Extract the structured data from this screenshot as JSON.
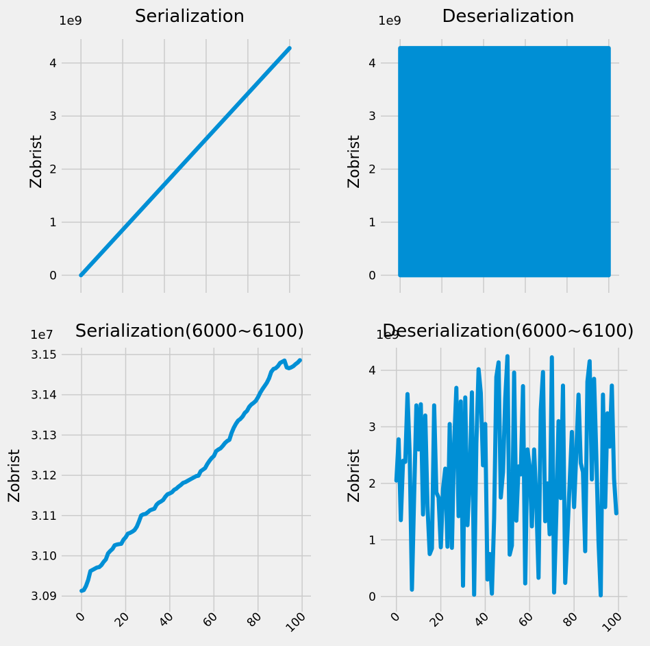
{
  "style": {
    "background": "#f0f0f0",
    "grid_color": "#cbcbcb",
    "line_color": "#008fd5"
  },
  "chart_data": [
    {
      "type": "line",
      "title": "Serialization",
      "ylabel": "Zobrist",
      "xlabel": "",
      "offset_text": "1e9",
      "y_scale_factor": 1000000000.0,
      "xlim": [
        -5,
        105
      ],
      "ylim": [
        -0.15,
        4.45
      ],
      "xticks": [
        0,
        20,
        40,
        60,
        80,
        100
      ],
      "yticks": [
        0,
        1,
        2,
        3,
        4
      ],
      "ytick_labels": [
        "0",
        "1",
        "2",
        "3",
        "4"
      ],
      "show_xtick_labels": false,
      "series": [
        {
          "x": [
            0,
            100
          ],
          "y": [
            0,
            4.28
          ]
        }
      ]
    },
    {
      "type": "line",
      "title": "Deserialization",
      "ylabel": "Zobrist",
      "xlabel": "",
      "offset_text": "1e9",
      "y_scale_factor": 1000000000.0,
      "xlim": [
        -5,
        105
      ],
      "ylim": [
        -0.15,
        4.45
      ],
      "xticks": [
        0,
        20,
        40,
        60,
        80,
        100
      ],
      "yticks": [
        0,
        1,
        2,
        3,
        4
      ],
      "ytick_labels": [
        "0",
        "1",
        "2",
        "3",
        "4"
      ],
      "show_xtick_labels": false,
      "filled_band": {
        "x": [
          0,
          100
        ],
        "y_range": [
          0,
          4.28
        ]
      },
      "series": []
    },
    {
      "type": "line",
      "title": "Serialization(6000~6100)",
      "ylabel": "Zobrist",
      "xlabel": "",
      "offset_text": "1e7",
      "y_scale_factor": 10000000.0,
      "xlim": [
        -5,
        104
      ],
      "ylim": [
        3.0885,
        3.1517
      ],
      "xticks": [
        0,
        20,
        40,
        60,
        80,
        100
      ],
      "xtick_labels": [
        "0",
        "20",
        "40",
        "60",
        "80",
        "100"
      ],
      "yticks": [
        3.09,
        3.1,
        3.11,
        3.12,
        3.13,
        3.14,
        3.15
      ],
      "ytick_labels": [
        "3.09",
        "3.10",
        "3.11",
        "3.12",
        "3.13",
        "3.14",
        "3.15"
      ],
      "show_xtick_labels": true,
      "series": [
        {
          "x": [
            0,
            1,
            2,
            3,
            4,
            5,
            6,
            7,
            8,
            9,
            10,
            11,
            12,
            13,
            14,
            15,
            16,
            17,
            18,
            19,
            20,
            21,
            22,
            23,
            24,
            25,
            26,
            27,
            28,
            29,
            30,
            31,
            32,
            33,
            34,
            35,
            36,
            37,
            38,
            39,
            40,
            41,
            42,
            43,
            44,
            45,
            46,
            47,
            48,
            49,
            50,
            51,
            52,
            53,
            54,
            55,
            56,
            57,
            58,
            59,
            60,
            61,
            62,
            63,
            64,
            65,
            66,
            67,
            68,
            69,
            70,
            71,
            72,
            73,
            74,
            75,
            76,
            77,
            78,
            79,
            80,
            81,
            82,
            83,
            84,
            85,
            86,
            87,
            88,
            89,
            90,
            91,
            92,
            93,
            94,
            95,
            96,
            97,
            98,
            99
          ],
          "y": [
            3.0913,
            3.0915,
            3.0925,
            3.094,
            3.0962,
            3.0965,
            3.0968,
            3.0971,
            3.0972,
            3.0977,
            3.0985,
            3.0991,
            3.1006,
            3.1012,
            3.1017,
            3.1026,
            3.1028,
            3.1029,
            3.103,
            3.104,
            3.1046,
            3.1055,
            3.1057,
            3.106,
            3.1064,
            3.1072,
            3.1085,
            3.11,
            3.1103,
            3.1104,
            3.1108,
            3.1113,
            3.1115,
            3.1117,
            3.1127,
            3.1132,
            3.1135,
            3.1139,
            3.1147,
            3.1153,
            3.1155,
            3.1158,
            3.1164,
            3.1167,
            3.1172,
            3.1176,
            3.1181,
            3.1183,
            3.1186,
            3.1189,
            3.1192,
            3.1195,
            3.1198,
            3.1199,
            3.121,
            3.1214,
            3.1218,
            3.1228,
            3.1236,
            3.1243,
            3.1248,
            3.126,
            3.1264,
            3.1267,
            3.1273,
            3.128,
            3.1285,
            3.1288,
            3.1305,
            3.1318,
            3.1328,
            3.1336,
            3.134,
            3.1346,
            3.1355,
            3.136,
            3.137,
            3.1376,
            3.138,
            3.1385,
            3.1394,
            3.1405,
            3.1414,
            3.1422,
            3.143,
            3.1441,
            3.1457,
            3.1464,
            3.1466,
            3.1471,
            3.1479,
            3.1482,
            3.1485,
            3.1468,
            3.1466,
            3.1468,
            3.1471,
            3.1476,
            3.148,
            3.1486
          ]
        }
      ]
    },
    {
      "type": "line",
      "title": "Deserialization(6000~6100)",
      "ylabel": "Zobrist",
      "xlabel": "",
      "offset_text": "1e9",
      "y_scale_factor": 1000000000.0,
      "xlim": [
        -3,
        104
      ],
      "ylim": [
        -0.1,
        4.4
      ],
      "xticks": [
        0,
        20,
        40,
        60,
        80,
        100
      ],
      "xtick_labels": [
        "0",
        "20",
        "40",
        "60",
        "80",
        "100"
      ],
      "yticks": [
        0,
        1,
        2,
        3,
        4
      ],
      "ytick_labels": [
        "0",
        "1",
        "2",
        "3",
        "4"
      ],
      "show_xtick_labels": true,
      "series": [
        {
          "x": [
            0,
            1,
            2,
            3,
            4,
            5,
            6,
            7,
            8,
            9,
            10,
            11,
            12,
            13,
            14,
            15,
            16,
            17,
            18,
            19,
            20,
            21,
            22,
            23,
            24,
            25,
            26,
            27,
            28,
            29,
            30,
            31,
            32,
            33,
            34,
            35,
            36,
            37,
            38,
            39,
            40,
            41,
            42,
            43,
            44,
            45,
            46,
            47,
            48,
            49,
            50,
            51,
            52,
            53,
            54,
            55,
            56,
            57,
            58,
            59,
            60,
            61,
            62,
            63,
            64,
            65,
            66,
            67,
            68,
            69,
            70,
            71,
            72,
            73,
            74,
            75,
            76,
            77,
            78,
            79,
            80,
            81,
            82,
            83,
            84,
            85,
            86,
            87,
            88,
            89,
            90,
            91,
            92,
            93,
            94,
            95,
            96,
            97,
            98,
            99
          ],
          "y": [
            2.05,
            2.78,
            1.35,
            2.4,
            2.38,
            3.58,
            2.5,
            0.12,
            1.8,
            3.38,
            2.6,
            3.4,
            1.45,
            3.2,
            1.6,
            0.75,
            0.85,
            3.38,
            1.84,
            1.75,
            0.87,
            1.9,
            2.26,
            0.88,
            3.05,
            0.86,
            2.7,
            3.69,
            1.42,
            3.45,
            0.19,
            3.52,
            1.26,
            2.1,
            3.61,
            0.03,
            2.71,
            4.02,
            3.6,
            2.32,
            3.05,
            0.3,
            0.75,
            0.05,
            1.38,
            3.88,
            4.14,
            1.75,
            2.2,
            3.5,
            4.25,
            0.74,
            0.9,
            3.96,
            1.34,
            2.3,
            2.16,
            3.72,
            0.23,
            2.6,
            2.3,
            1.24,
            2.6,
            1.7,
            0.33,
            3.3,
            3.97,
            1.33,
            2.0,
            1.1,
            4.23,
            0.07,
            1.45,
            3.1,
            1.74,
            3.73,
            0.24,
            1.1,
            2.0,
            2.91,
            1.58,
            2.55,
            3.57,
            2.36,
            2.2,
            0.8,
            3.8,
            4.16,
            2.07,
            3.85,
            2.5,
            0.97,
            0.02,
            3.57,
            1.58,
            3.24,
            2.65,
            3.73,
            2.08,
            1.47
          ]
        }
      ]
    }
  ]
}
